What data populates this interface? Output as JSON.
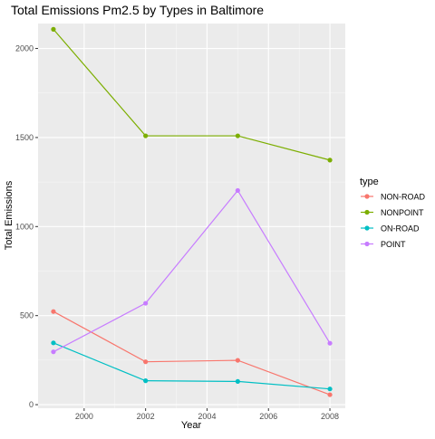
{
  "chart_data": {
    "type": "line",
    "title": "Total Emissions Pm2.5 by Types in Baltimore",
    "xlabel": "Year",
    "ylabel": "Total Emissions",
    "x": [
      1999,
      2002,
      2005,
      2008
    ],
    "xlim": [
      1998.5,
      2008.5
    ],
    "ylim": [
      -20,
      2140
    ],
    "xticks": [
      2000,
      2002,
      2004,
      2006,
      2008
    ],
    "yticks": [
      0,
      500,
      1000,
      1500,
      2000
    ],
    "grid": true,
    "legend": {
      "title": "type",
      "position": "right"
    },
    "series": [
      {
        "name": "NON-ROAD",
        "color": "#F8766D",
        "values": [
          522.9,
          240.8,
          248.9,
          55.8
        ]
      },
      {
        "name": "NONPOINT",
        "color": "#7CAE00",
        "values": [
          2107.6,
          1509.5,
          1509.5,
          1373.2
        ]
      },
      {
        "name": "ON-ROAD",
        "color": "#00BFC4",
        "values": [
          346.8,
          134.3,
          130.4,
          88.3
        ]
      },
      {
        "name": "POINT",
        "color": "#C77CFF",
        "values": [
          296.8,
          569.3,
          1202.5,
          344.9
        ]
      }
    ]
  }
}
